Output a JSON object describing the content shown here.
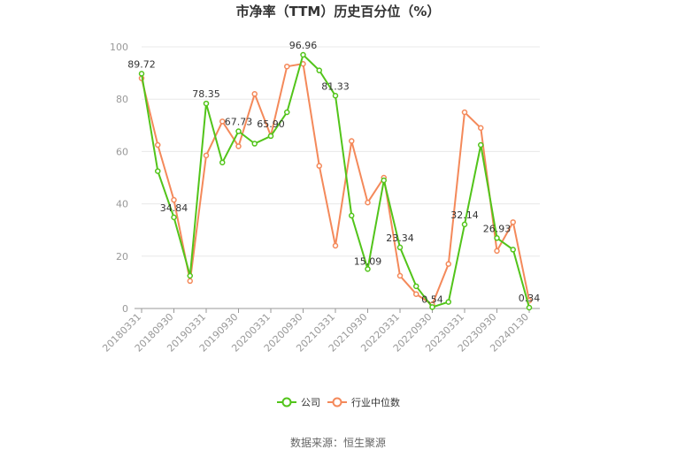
{
  "chart_data": {
    "type": "line",
    "title": "市净率（TTM）历史百分位（%）",
    "ylim": [
      0,
      100
    ],
    "yticks": [
      0,
      20,
      40,
      60,
      80,
      100
    ],
    "grid": true,
    "legend_position": "bottom-center",
    "x_tick_labels": [
      "20180331",
      "20180930",
      "20190331",
      "20190930",
      "20200331",
      "20200930",
      "20210331",
      "20210930",
      "20220331",
      "20220930",
      "20230331",
      "20230930",
      "20240130"
    ],
    "series": [
      {
        "name": "公司",
        "color": "#52c41a",
        "values": [
          89.72,
          52.5,
          34.84,
          12.5,
          78.35,
          55.8,
          67.73,
          63.0,
          65.9,
          75.0,
          96.96,
          91.0,
          81.33,
          35.5,
          15.09,
          49.0,
          23.34,
          8.5,
          0.54,
          2.5,
          32.14,
          62.5,
          26.93,
          22.5,
          0.34
        ],
        "labels": {
          "0": "89.72",
          "2": "34.84",
          "4": "78.35",
          "6": "67.73",
          "8": "65.90",
          "10": "96.96",
          "12": "81.33",
          "14": "15.09",
          "16": "23.34",
          "18": "0.54",
          "20": "32.14",
          "22": "26.93",
          "24": "0.34"
        }
      },
      {
        "name": "行业中位数",
        "color": "#f4895a",
        "values": [
          88.0,
          62.5,
          41.5,
          10.5,
          58.5,
          71.5,
          62.0,
          82.0,
          66.0,
          92.5,
          93.5,
          54.5,
          24.0,
          64.0,
          40.5,
          50.0,
          12.5,
          5.5,
          1.5,
          17.0,
          75.0,
          69.0,
          22.0,
          33.0,
          3.0
        ]
      }
    ]
  },
  "source_text": "数据来源：恒生聚源"
}
